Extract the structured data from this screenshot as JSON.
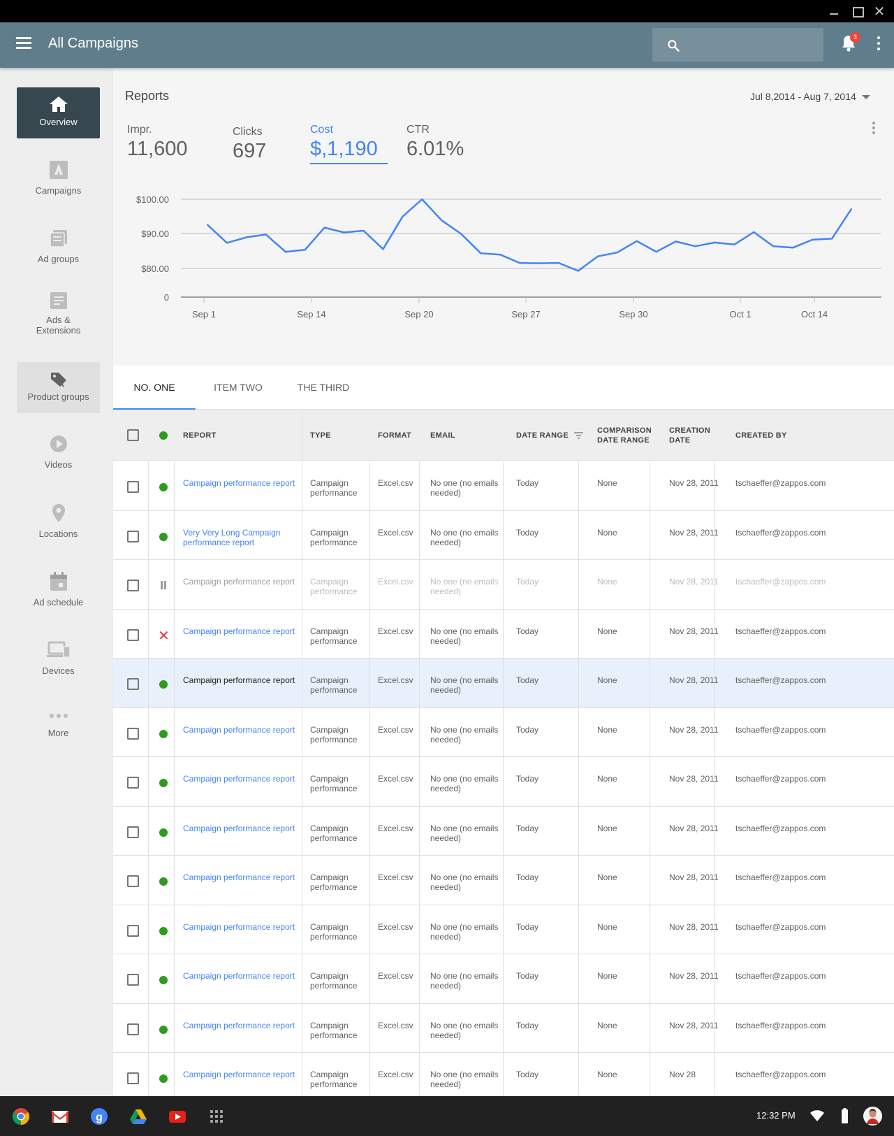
{
  "appbar": {
    "title": "All Campaigns",
    "search_placeholder": "",
    "notification_count": "3"
  },
  "sidebar": {
    "items": [
      {
        "label": "Overview",
        "icon": "home-icon",
        "state": "active"
      },
      {
        "label": "Campaigns",
        "icon": "campaigns-icon"
      },
      {
        "label": "Ad groups",
        "icon": "ad-groups-icon"
      },
      {
        "label": "Ads &\nExtensions",
        "icon": "ads-extensions-icon"
      },
      {
        "label": "Product groups",
        "icon": "tag-icon",
        "state": "hover"
      },
      {
        "label": "Videos",
        "icon": "play-icon"
      },
      {
        "label": "Locations",
        "icon": "location-pin-icon"
      },
      {
        "label": "Ad schedule",
        "icon": "calendar-icon"
      },
      {
        "label": "Devices",
        "icon": "devices-icon"
      },
      {
        "label": "More",
        "icon": "more-horiz-icon"
      }
    ]
  },
  "reports": {
    "title": "Reports",
    "date_range": "Jul 8,2014 - Aug 7, 2014",
    "metrics": [
      {
        "label": "Impr.",
        "value": "11,600"
      },
      {
        "label": "Clicks",
        "value": "697"
      },
      {
        "label": "Cost",
        "value": "$,1,190",
        "active": true
      },
      {
        "label": "CTR",
        "value": "6.01%"
      }
    ]
  },
  "chart_data": {
    "type": "line",
    "title": "",
    "xlabel": "",
    "ylabel": "",
    "y_tick_labels": [
      "$100.00",
      "$90.00",
      "$80.00",
      "0"
    ],
    "x_tick_labels": [
      "Sep 1",
      "Sep 14",
      "Sep 20",
      "Sep 27",
      "Sep 30",
      "Oct 1",
      "Oct 14"
    ],
    "grid": true,
    "color": "#4285f4",
    "values": [
      92.6,
      87.4,
      89.0,
      89.8,
      84.8,
      85.4,
      91.8,
      90.4,
      90.9,
      85.6,
      95.0,
      100.0,
      93.9,
      90.0,
      84.4,
      84.0,
      81.6,
      81.5,
      81.6,
      79.3,
      83.5,
      84.6,
      87.9,
      84.8,
      87.8,
      86.4,
      87.5,
      86.9,
      90.5,
      86.4,
      86.0,
      88.3,
      88.6,
      97.2
    ]
  },
  "tabs": [
    "NO. ONE",
    "ITEM TWO",
    "THE THIRD"
  ],
  "table": {
    "headers": {
      "report": "REPORT",
      "type": "TYPE",
      "format": "FORMAT",
      "email": "EMAIL",
      "date_range": "DATE RANGE",
      "comparison": "COMPARISON DATE RANGE",
      "creation": "CREATION DATE",
      "created_by": "CREATED BY"
    },
    "rows": [
      {
        "status": "active",
        "report": "Campaign performance report",
        "type": "Campaign performance",
        "format": "Excel.csv",
        "email": "No one (no emails needed)",
        "date_range": "Today",
        "comparison": "None",
        "creation": "Nov 28, 2011",
        "created_by": "tschaeffer@zappos.com"
      },
      {
        "status": "active",
        "report": "Very Very Long Campaign performance report",
        "type": "Campaign performance",
        "format": "Excel.csv",
        "email": "No one (no emails needed)",
        "date_range": "Today",
        "comparison": "None",
        "creation": "Nov 28, 2011",
        "created_by": "tschaeffer@zappos.com"
      },
      {
        "status": "paused",
        "report": "Campaign performance report",
        "type": "Campaign performance",
        "format": "Excel.csv",
        "email": "No one (no emails needed)",
        "date_range": "Today",
        "comparison": "None",
        "creation": "Nov 28, 2011",
        "created_by": "tschaeffer@zappos.com"
      },
      {
        "status": "error",
        "report": "Campaign performance report",
        "type": "Campaign performance",
        "format": "Excel.csv",
        "email": "No one (no emails needed)",
        "date_range": "Today",
        "comparison": "None",
        "creation": "Nov 28, 2011",
        "created_by": "tschaeffer@zappos.com"
      },
      {
        "status": "active",
        "selected": true,
        "report": "Campaign performance report",
        "type": "Campaign performance",
        "format": "Excel.csv",
        "email": "No one (no emails needed)",
        "date_range": "Today",
        "comparison": "None",
        "creation": "Nov 28, 2011",
        "created_by": "tschaeffer@zappos.com"
      },
      {
        "status": "active",
        "report": "Campaign performance report",
        "type": "Campaign performance",
        "format": "Excel.csv",
        "email": "No one (no emails needed)",
        "date_range": "Today",
        "comparison": "None",
        "creation": "Nov 28, 2011",
        "created_by": "tschaeffer@zappos.com"
      },
      {
        "status": "active",
        "report": "Campaign performance report",
        "type": "Campaign performance",
        "format": "Excel.csv",
        "email": "No one (no emails needed)",
        "date_range": "Today",
        "comparison": "None",
        "creation": "Nov 28, 2011",
        "created_by": "tschaeffer@zappos.com"
      },
      {
        "status": "active",
        "report": "Campaign performance report",
        "type": "Campaign performance",
        "format": "Excel.csv",
        "email": "No one (no emails needed)",
        "date_range": "Today",
        "comparison": "None",
        "creation": "Nov 28, 2011",
        "created_by": "tschaeffer@zappos.com"
      },
      {
        "status": "active",
        "report": "Campaign performance report",
        "type": "Campaign performance",
        "format": "Excel.csv",
        "email": "No one (no emails needed)",
        "date_range": "Today",
        "comparison": "None",
        "creation": "Nov 28, 2011",
        "created_by": "tschaeffer@zappos.com"
      },
      {
        "status": "active",
        "report": "Campaign performance report",
        "type": "Campaign performance",
        "format": "Excel.csv",
        "email": "No one (no emails needed)",
        "date_range": "Today",
        "comparison": "None",
        "creation": "Nov 28, 2011",
        "created_by": "tschaeffer@zappos.com"
      },
      {
        "status": "active",
        "report": "Campaign performance report",
        "type": "Campaign performance",
        "format": "Excel.csv",
        "email": "No one (no emails needed)",
        "date_range": "Today",
        "comparison": "None",
        "creation": "Nov 28, 2011",
        "created_by": "tschaeffer@zappos.com"
      },
      {
        "status": "active",
        "report": "Campaign performance report",
        "type": "Campaign performance",
        "format": "Excel.csv",
        "email": "No one (no emails needed)",
        "date_range": "Today",
        "comparison": "None",
        "creation": "Nov 28, 2011",
        "created_by": "tschaeffer@zappos.com"
      },
      {
        "status": "active",
        "report": "Campaign performance report",
        "type": "Campaign performance",
        "format": "Excel.csv",
        "email": "No one (no emails needed)",
        "date_range": "Today",
        "comparison": "None",
        "creation": "Nov 28",
        "created_by": "tschaeffer@zappos.com"
      }
    ]
  },
  "shelf": {
    "apps": [
      "chrome-icon",
      "gmail-icon",
      "google-search-icon",
      "drive-icon",
      "youtube-icon",
      "app-launcher-icon"
    ],
    "clock": "12:32 PM"
  }
}
